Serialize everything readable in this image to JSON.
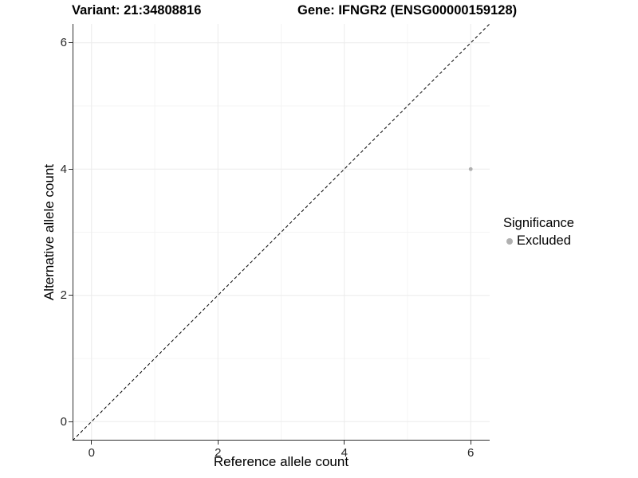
{
  "titles": {
    "variant": "Variant: 21:34808816",
    "gene": "Gene: IFNGR2 (ENSG00000159128)"
  },
  "chart_data": {
    "type": "scatter",
    "xlabel": "Reference allele count",
    "ylabel": "Alternative allele count",
    "xlim": [
      -0.3,
      6.3
    ],
    "ylim": [
      -0.3,
      6.3
    ],
    "x_ticks": [
      0,
      2,
      4,
      6
    ],
    "y_ticks": [
      0,
      2,
      4,
      6
    ],
    "minor_ticks": [
      1,
      3,
      5
    ],
    "grid": true,
    "points": [
      {
        "x": 6,
        "y": 4,
        "series": "Excluded"
      }
    ],
    "identity_line": {
      "slope": 1,
      "intercept": 0,
      "style": "dashed"
    },
    "legend": {
      "title": "Significance",
      "position": "right",
      "entries": [
        {
          "label": "Excluded",
          "color": "#b0b0b0"
        }
      ]
    }
  },
  "colors": {
    "point": "#b0b0b0",
    "grid_major": "#ebebeb",
    "grid_minor": "#f4f4f4",
    "axis_line": "#2f2f2f",
    "identity_line": "#000000"
  }
}
